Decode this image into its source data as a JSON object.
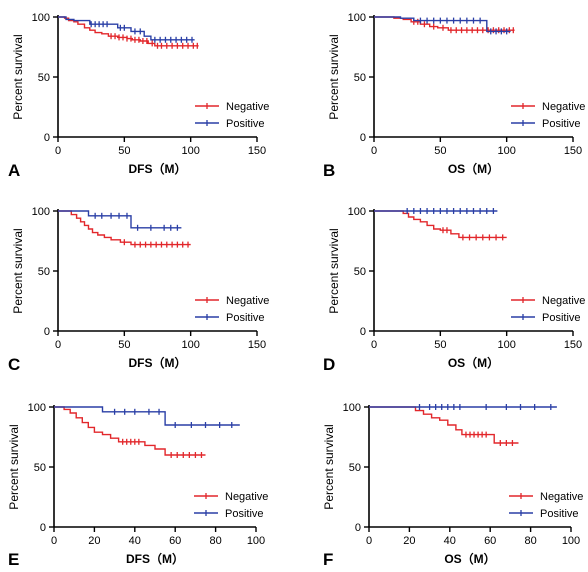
{
  "colors": {
    "negative": "#e2272b",
    "positive": "#2a3fa6",
    "axis": "#000000"
  },
  "chart_data": [
    {
      "panel": "A",
      "type": "line",
      "step": true,
      "ylabel": "Percent survival",
      "xlabel": "DFS（M）",
      "xlim": [
        0,
        150
      ],
      "ylim": [
        0,
        100
      ],
      "xticks": [
        0,
        50,
        100,
        150
      ],
      "yticks": [
        0,
        50,
        100
      ],
      "legend": "bottom-right",
      "series": [
        {
          "name": "Negative",
          "color": "#e2272b",
          "points": [
            [
              0,
              100
            ],
            [
              5,
              99
            ],
            [
              8,
              97
            ],
            [
              12,
              96
            ],
            [
              15,
              94
            ],
            [
              20,
              91
            ],
            [
              24,
              89
            ],
            [
              28,
              87
            ],
            [
              33,
              86
            ],
            [
              38,
              84
            ],
            [
              45,
              83
            ],
            [
              52,
              82
            ],
            [
              56,
              81
            ],
            [
              62,
              80
            ],
            [
              68,
              78
            ],
            [
              73,
              76
            ],
            [
              106,
              76
            ]
          ],
          "censored": [
            40,
            43,
            46,
            49,
            52,
            55,
            58,
            61,
            64,
            67,
            71,
            75,
            78,
            82,
            86,
            90,
            94,
            98,
            102,
            105
          ]
        },
        {
          "name": "Positive",
          "color": "#2a3fa6",
          "points": [
            [
              0,
              100
            ],
            [
              6,
              98
            ],
            [
              12,
              97
            ],
            [
              24,
              94
            ],
            [
              45,
              91
            ],
            [
              55,
              88
            ],
            [
              65,
              84
            ],
            [
              70,
              81
            ],
            [
              103,
              81
            ]
          ],
          "censored": [
            25,
            28,
            31,
            34,
            37,
            47,
            50,
            58,
            62,
            73,
            77,
            81,
            85,
            89,
            93,
            97,
            101
          ]
        }
      ]
    },
    {
      "panel": "B",
      "type": "line",
      "step": true,
      "ylabel": "Percent survival",
      "xlabel": "OS（M）",
      "xlim": [
        0,
        150
      ],
      "ylim": [
        0,
        100
      ],
      "xticks": [
        0,
        50,
        100,
        150
      ],
      "yticks": [
        0,
        50,
        100
      ],
      "legend": "bottom-right",
      "series": [
        {
          "name": "Negative",
          "color": "#e2272b",
          "points": [
            [
              0,
              100
            ],
            [
              15,
              99
            ],
            [
              22,
              98
            ],
            [
              28,
              96
            ],
            [
              35,
              94
            ],
            [
              42,
              92
            ],
            [
              48,
              91
            ],
            [
              56,
              89
            ],
            [
              106,
              89
            ]
          ],
          "censored": [
            30,
            33,
            38,
            45,
            52,
            58,
            62,
            66,
            70,
            74,
            78,
            82,
            86,
            90,
            94,
            98,
            102,
            105
          ]
        },
        {
          "name": "Positive",
          "color": "#2a3fa6",
          "points": [
            [
              0,
              100
            ],
            [
              20,
              99
            ],
            [
              30,
              97
            ],
            [
              83,
              97
            ],
            [
              85,
              88
            ],
            [
              103,
              88
            ]
          ],
          "censored": [
            35,
            40,
            45,
            50,
            55,
            60,
            65,
            70,
            75,
            80,
            88,
            92,
            96,
            100
          ]
        }
      ]
    },
    {
      "panel": "C",
      "type": "line",
      "step": true,
      "ylabel": "Percent survival",
      "xlabel": "DFS（M）",
      "xlim": [
        0,
        150
      ],
      "ylim": [
        0,
        100
      ],
      "xticks": [
        0,
        50,
        100,
        150
      ],
      "yticks": [
        0,
        50,
        100
      ],
      "legend": "bottom-right",
      "series": [
        {
          "name": "Negative",
          "color": "#e2272b",
          "points": [
            [
              0,
              100
            ],
            [
              10,
              97
            ],
            [
              14,
              94
            ],
            [
              17,
              91
            ],
            [
              20,
              88
            ],
            [
              23,
              85
            ],
            [
              26,
              82
            ],
            [
              30,
              80
            ],
            [
              35,
              78
            ],
            [
              40,
              76
            ],
            [
              47,
              74
            ],
            [
              55,
              72
            ],
            [
              100,
              72
            ]
          ],
          "censored": [
            50,
            58,
            62,
            66,
            70,
            74,
            78,
            82,
            86,
            90,
            94,
            98
          ]
        },
        {
          "name": "Positive",
          "color": "#2a3fa6",
          "points": [
            [
              0,
              100
            ],
            [
              23,
              96
            ],
            [
              55,
              86
            ],
            [
              93,
              86
            ]
          ],
          "censored": [
            28,
            33,
            40,
            46,
            52,
            60,
            70,
            80,
            85,
            90
          ]
        }
      ]
    },
    {
      "panel": "D",
      "type": "line",
      "step": true,
      "ylabel": "Percent survival",
      "xlabel": "OS（M）",
      "xlim": [
        0,
        150
      ],
      "ylim": [
        0,
        100
      ],
      "xticks": [
        0,
        50,
        100,
        150
      ],
      "yticks": [
        0,
        50,
        100
      ],
      "legend": "bottom-right",
      "series": [
        {
          "name": "Negative",
          "color": "#e2272b",
          "points": [
            [
              0,
              100
            ],
            [
              22,
              98
            ],
            [
              26,
              95
            ],
            [
              30,
              93
            ],
            [
              35,
              91
            ],
            [
              40,
              88
            ],
            [
              45,
              85
            ],
            [
              50,
              84
            ],
            [
              58,
              81
            ],
            [
              64,
              78
            ],
            [
              100,
              78
            ]
          ],
          "censored": [
            52,
            55,
            67,
            72,
            77,
            82,
            87,
            92,
            97
          ]
        },
        {
          "name": "Positive",
          "color": "#2a3fa6",
          "points": [
            [
              0,
              100
            ],
            [
              93,
              100
            ]
          ],
          "censored": [
            25,
            30,
            35,
            40,
            45,
            50,
            55,
            60,
            65,
            70,
            75,
            80,
            85,
            90
          ]
        }
      ]
    },
    {
      "panel": "E",
      "type": "line",
      "step": true,
      "ylabel": "Percent survival",
      "xlabel": "DFS（M）",
      "xlim": [
        0,
        100
      ],
      "ylim": [
        0,
        100
      ],
      "xticks": [
        0,
        20,
        40,
        60,
        80,
        100
      ],
      "yticks": [
        0,
        50,
        100
      ],
      "legend": "bottom-right",
      "series": [
        {
          "name": "Negative",
          "color": "#e2272b",
          "points": [
            [
              0,
              100
            ],
            [
              5,
              98
            ],
            [
              8,
              95
            ],
            [
              11,
              91
            ],
            [
              14,
              87
            ],
            [
              17,
              83
            ],
            [
              20,
              79
            ],
            [
              24,
              77
            ],
            [
              28,
              74
            ],
            [
              32,
              71
            ],
            [
              45,
              68
            ],
            [
              50,
              65
            ],
            [
              55,
              60
            ],
            [
              75,
              60
            ]
          ],
          "censored": [
            34,
            36,
            38,
            40,
            42,
            58,
            61,
            64,
            67,
            70,
            73
          ]
        },
        {
          "name": "Positive",
          "color": "#2a3fa6",
          "points": [
            [
              0,
              100
            ],
            [
              24,
              96
            ],
            [
              55,
              85
            ],
            [
              92,
              85
            ]
          ],
          "censored": [
            30,
            35,
            40,
            47,
            52,
            60,
            68,
            75,
            82,
            88
          ]
        }
      ]
    },
    {
      "panel": "F",
      "type": "line",
      "step": true,
      "ylabel": "Percent survival",
      "xlabel": "OS（M）",
      "xlim": [
        0,
        100
      ],
      "ylim": [
        0,
        100
      ],
      "xticks": [
        0,
        20,
        40,
        60,
        80,
        100
      ],
      "yticks": [
        0,
        50,
        100
      ],
      "legend": "bottom-right",
      "series": [
        {
          "name": "Negative",
          "color": "#e2272b",
          "points": [
            [
              0,
              100
            ],
            [
              23,
              97
            ],
            [
              27,
              94
            ],
            [
              31,
              91
            ],
            [
              35,
              89
            ],
            [
              39,
              85
            ],
            [
              43,
              81
            ],
            [
              46,
              77
            ],
            [
              62,
              70
            ],
            [
              74,
              70
            ]
          ],
          "censored": [
            48,
            50,
            52,
            54,
            56,
            58,
            65,
            68,
            71
          ]
        },
        {
          "name": "Positive",
          "color": "#2a3fa6",
          "points": [
            [
              0,
              100
            ],
            [
              93,
              100
            ]
          ],
          "censored": [
            25,
            30,
            33,
            36,
            39,
            42,
            45,
            58,
            68,
            75,
            82,
            90
          ]
        }
      ]
    }
  ]
}
